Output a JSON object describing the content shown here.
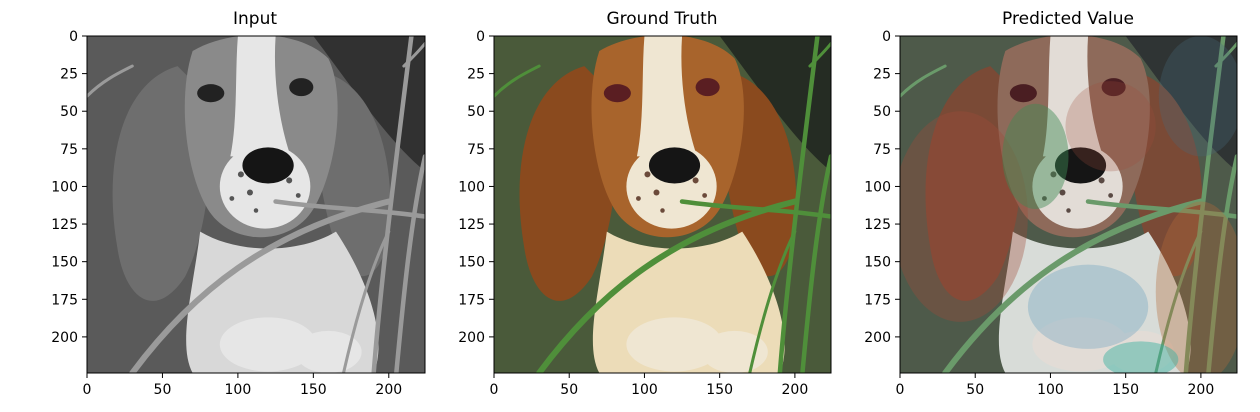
{
  "panels": [
    {
      "title": "Input",
      "image": "grayscale photo of a basset hound puppy lying in grass"
    },
    {
      "title": "Ground Truth",
      "image": "color photo of a brown and white basset hound puppy lying in green grass"
    },
    {
      "title": "Predicted Value",
      "image": "colorized prediction of the basset hound puppy photo with blotchy red, green and blue tints"
    }
  ],
  "axes": {
    "xticks": [
      "0",
      "50",
      "100",
      "150",
      "200"
    ],
    "yticks": [
      "0",
      "25",
      "50",
      "75",
      "100",
      "125",
      "150",
      "175",
      "200"
    ],
    "xlim": [
      0,
      224
    ],
    "ylim": [
      0,
      224
    ]
  },
  "colors": {
    "ground_truth_ear": "#8a4a1e",
    "ground_truth_grass": "#4f8f3a",
    "prediction_tint_red": "#a04a3a",
    "prediction_tint_green": "#3f8a55",
    "prediction_tint_blue": "#6aa0c0"
  }
}
